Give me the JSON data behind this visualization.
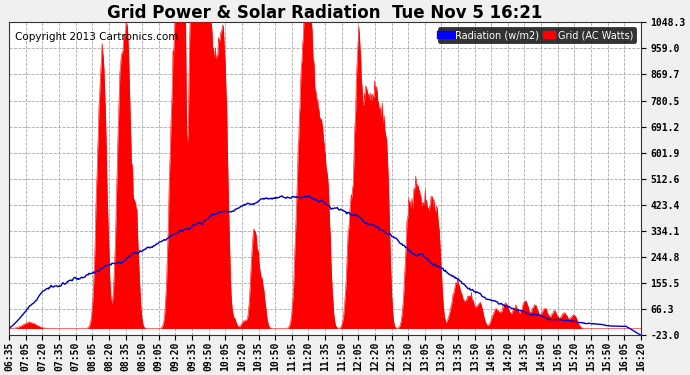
{
  "title": "Grid Power & Solar Radiation  Tue Nov 5 16:21",
  "copyright": "Copyright 2013 Cartronics.com",
  "legend_radiation": "Radiation (w/m2)",
  "legend_grid": "Grid (AC Watts)",
  "yticks": [
    -23.0,
    66.3,
    155.5,
    244.8,
    334.1,
    423.4,
    512.6,
    601.9,
    691.2,
    780.5,
    869.7,
    959.0,
    1048.3
  ],
  "ylim": [
    -23.0,
    1048.3
  ],
  "background_color": "#f0f0f0",
  "plot_bg_color": "#ffffff",
  "radiation_color": "#ff0000",
  "grid_line_color": "#0000cc",
  "title_fontsize": 12,
  "copyright_fontsize": 7.5,
  "tick_fontsize": 7,
  "xtick_labels": [
    "06:35",
    "07:05",
    "07:20",
    "07:35",
    "07:50",
    "08:05",
    "08:20",
    "08:35",
    "08:50",
    "09:05",
    "09:20",
    "09:35",
    "09:50",
    "10:05",
    "10:20",
    "10:35",
    "10:50",
    "11:05",
    "11:20",
    "11:35",
    "11:50",
    "12:05",
    "12:20",
    "12:35",
    "12:50",
    "13:05",
    "13:20",
    "13:35",
    "13:50",
    "14:05",
    "14:20",
    "14:35",
    "14:50",
    "15:05",
    "15:20",
    "15:35",
    "15:50",
    "16:05",
    "16:20"
  ],
  "grid_dash_style": "--",
  "grid_dash_linewidth": 0.6,
  "grid_dash_color": "#aaaaaa",
  "figsize": [
    6.9,
    3.75
  ],
  "dpi": 100
}
